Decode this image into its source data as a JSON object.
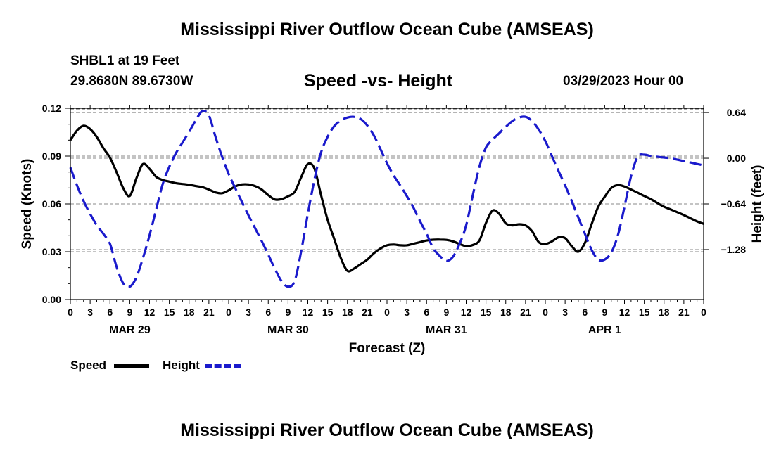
{
  "header": {
    "title": "Mississippi River Outflow Ocean Cube (AMSEAS)",
    "station": "SHBL1 at 19 Feet",
    "coords": "29.8680N  89.6730W",
    "subtitle": "Speed -vs- Height",
    "date": "03/29/2023 Hour 00"
  },
  "footer": {
    "title": "Mississippi River Outflow Ocean Cube (AMSEAS)"
  },
  "legend": {
    "speed_label": "Speed",
    "height_label": "Height",
    "speed_color": "#000000",
    "height_color": "#1a1acc"
  },
  "chart_data": {
    "type": "line",
    "xlabel": "Forecast (Z)",
    "ylabel_left": "Speed (Knots)",
    "ylabel_right": "Height (feet)",
    "x_range_hours": [
      0,
      96
    ],
    "x_ticks": [
      "0",
      "3",
      "6",
      "9",
      "12",
      "15",
      "18",
      "21",
      "0",
      "3",
      "6",
      "9",
      "12",
      "15",
      "18",
      "21",
      "0",
      "3",
      "6",
      "9",
      "12",
      "15",
      "18",
      "21",
      "0",
      "3",
      "6",
      "9",
      "12",
      "15",
      "18",
      "21",
      "0"
    ],
    "day_labels": [
      {
        "label": "MAR 29",
        "hour": 9
      },
      {
        "label": "MAR 30",
        "hour": 33
      },
      {
        "label": "MAR 31",
        "hour": 57
      },
      {
        "label": "APR 1",
        "hour": 81
      }
    ],
    "y_left": {
      "range": [
        0,
        0.12
      ],
      "ticks": [
        "0.00",
        "0.03",
        "0.06",
        "0.09",
        "0.12"
      ]
    },
    "y_right": {
      "range": [
        -1.98,
        0.7
      ],
      "ticks": [
        "0.64",
        "0.00",
        "−0.64",
        "−1.28"
      ],
      "tick_values": [
        0.64,
        0.0,
        -0.64,
        -1.28
      ]
    },
    "grid": true,
    "series": [
      {
        "name": "Speed",
        "axis": "left",
        "style": "solid",
        "x": [
          0,
          1,
          2,
          3,
          4,
          5,
          6,
          7,
          8,
          9,
          10,
          11,
          12,
          13,
          14,
          15,
          16,
          17,
          18,
          19,
          20,
          21,
          22,
          23,
          24,
          25,
          26,
          27,
          28,
          29,
          30,
          31,
          32,
          33,
          34,
          35,
          36,
          37,
          38,
          39,
          40,
          41,
          42,
          43,
          44,
          45,
          46,
          47,
          48,
          49,
          50,
          51,
          52,
          53,
          54,
          55,
          56,
          57,
          58,
          59,
          60,
          61,
          62,
          63,
          64,
          65,
          66,
          67,
          68,
          69,
          70,
          71,
          72,
          73,
          74,
          75,
          76,
          77,
          78,
          79,
          80,
          81,
          82,
          83,
          84,
          85,
          86,
          87,
          88,
          89,
          90,
          91,
          92,
          93,
          94,
          95,
          96
        ],
        "values": [
          0.1,
          0.106,
          0.109,
          0.107,
          0.102,
          0.095,
          0.089,
          0.08,
          0.07,
          0.065,
          0.076,
          0.085,
          0.082,
          0.077,
          0.075,
          0.074,
          0.073,
          0.0725,
          0.072,
          0.0712,
          0.0705,
          0.069,
          0.0672,
          0.0667,
          0.0685,
          0.071,
          0.0722,
          0.0722,
          0.0712,
          0.069,
          0.0655,
          0.0628,
          0.063,
          0.0648,
          0.0675,
          0.0768,
          0.085,
          0.0822,
          0.0655,
          0.05,
          0.038,
          0.026,
          0.018,
          0.0194,
          0.0222,
          0.025,
          0.029,
          0.032,
          0.034,
          0.0345,
          0.034,
          0.034,
          0.035,
          0.036,
          0.037,
          0.0375,
          0.0376,
          0.0374,
          0.0365,
          0.0348,
          0.0335,
          0.0342,
          0.037,
          0.048,
          0.0558,
          0.0538,
          0.0478,
          0.0465,
          0.0472,
          0.0465,
          0.0428,
          0.036,
          0.0348,
          0.0365,
          0.039,
          0.0385,
          0.0335,
          0.03,
          0.0355,
          0.047,
          0.058,
          0.0645,
          0.07,
          0.0718,
          0.0709,
          0.069,
          0.067,
          0.065,
          0.063,
          0.0605,
          0.0582,
          0.0565,
          0.0548,
          0.053,
          0.051,
          0.049,
          0.0475
        ]
      },
      {
        "name": "Height",
        "axis": "right",
        "style": "dashed",
        "x": [
          0,
          1,
          2,
          3,
          4,
          5,
          6,
          7,
          8,
          9,
          10,
          11,
          12,
          13,
          14,
          15,
          16,
          17,
          18,
          19,
          20,
          21,
          22,
          23,
          24,
          25,
          26,
          27,
          28,
          29,
          30,
          31,
          32,
          33,
          34,
          35,
          36,
          37,
          38,
          39,
          40,
          41,
          42,
          43,
          44,
          45,
          46,
          47,
          48,
          49,
          50,
          51,
          52,
          53,
          54,
          55,
          56,
          57,
          58,
          59,
          60,
          61,
          62,
          63,
          64,
          65,
          66,
          67,
          68,
          69,
          70,
          71,
          72,
          73,
          74,
          75,
          76,
          77,
          78,
          79,
          80,
          81,
          82,
          83,
          84,
          85,
          86,
          87,
          88,
          89,
          90,
          91,
          92,
          93,
          94,
          95,
          96
        ],
        "values": [
          -0.13,
          -0.38,
          -0.6,
          -0.78,
          -0.94,
          -1.06,
          -1.2,
          -1.52,
          -1.75,
          -1.8,
          -1.67,
          -1.4,
          -1.08,
          -0.72,
          -0.36,
          -0.12,
          0.07,
          0.22,
          0.37,
          0.53,
          0.66,
          0.6,
          0.3,
          0.02,
          -0.22,
          -0.42,
          -0.61,
          -0.8,
          -0.98,
          -1.16,
          -1.35,
          -1.55,
          -1.72,
          -1.8,
          -1.72,
          -1.3,
          -0.78,
          -0.3,
          0.08,
          0.3,
          0.45,
          0.53,
          0.57,
          0.58,
          0.55,
          0.46,
          0.32,
          0.13,
          -0.07,
          -0.24,
          -0.38,
          -0.53,
          -0.69,
          -0.88,
          -1.06,
          -1.26,
          -1.37,
          -1.44,
          -1.38,
          -1.2,
          -0.94,
          -0.52,
          -0.12,
          0.15,
          0.26,
          0.35,
          0.44,
          0.52,
          0.57,
          0.58,
          0.52,
          0.4,
          0.24,
          0.03,
          -0.18,
          -0.38,
          -0.6,
          -0.83,
          -1.06,
          -1.28,
          -1.42,
          -1.42,
          -1.32,
          -1.08,
          -0.68,
          -0.25,
          0.02,
          0.05,
          0.03,
          0.02,
          0.01,
          0.0,
          -0.02,
          -0.04,
          -0.06,
          -0.08,
          -0.1
        ]
      }
    ]
  }
}
